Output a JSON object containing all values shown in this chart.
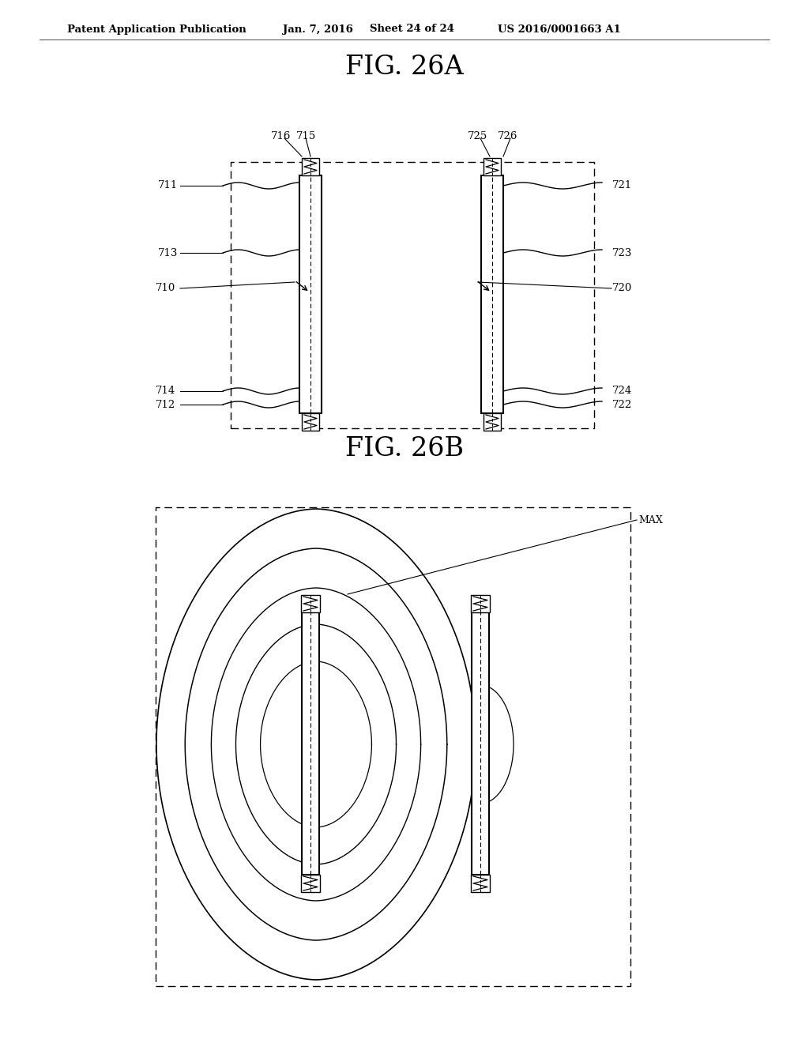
{
  "bg_color": "#ffffff",
  "header_text": "Patent Application Publication",
  "header_date": "Jan. 7, 2016",
  "header_sheet": "Sheet 24 of 24",
  "header_patent": "US 2016/0001663 A1",
  "fig_a_title": "FIG. 26A",
  "fig_b_title": "FIG. 26B",
  "line_color": "#000000"
}
